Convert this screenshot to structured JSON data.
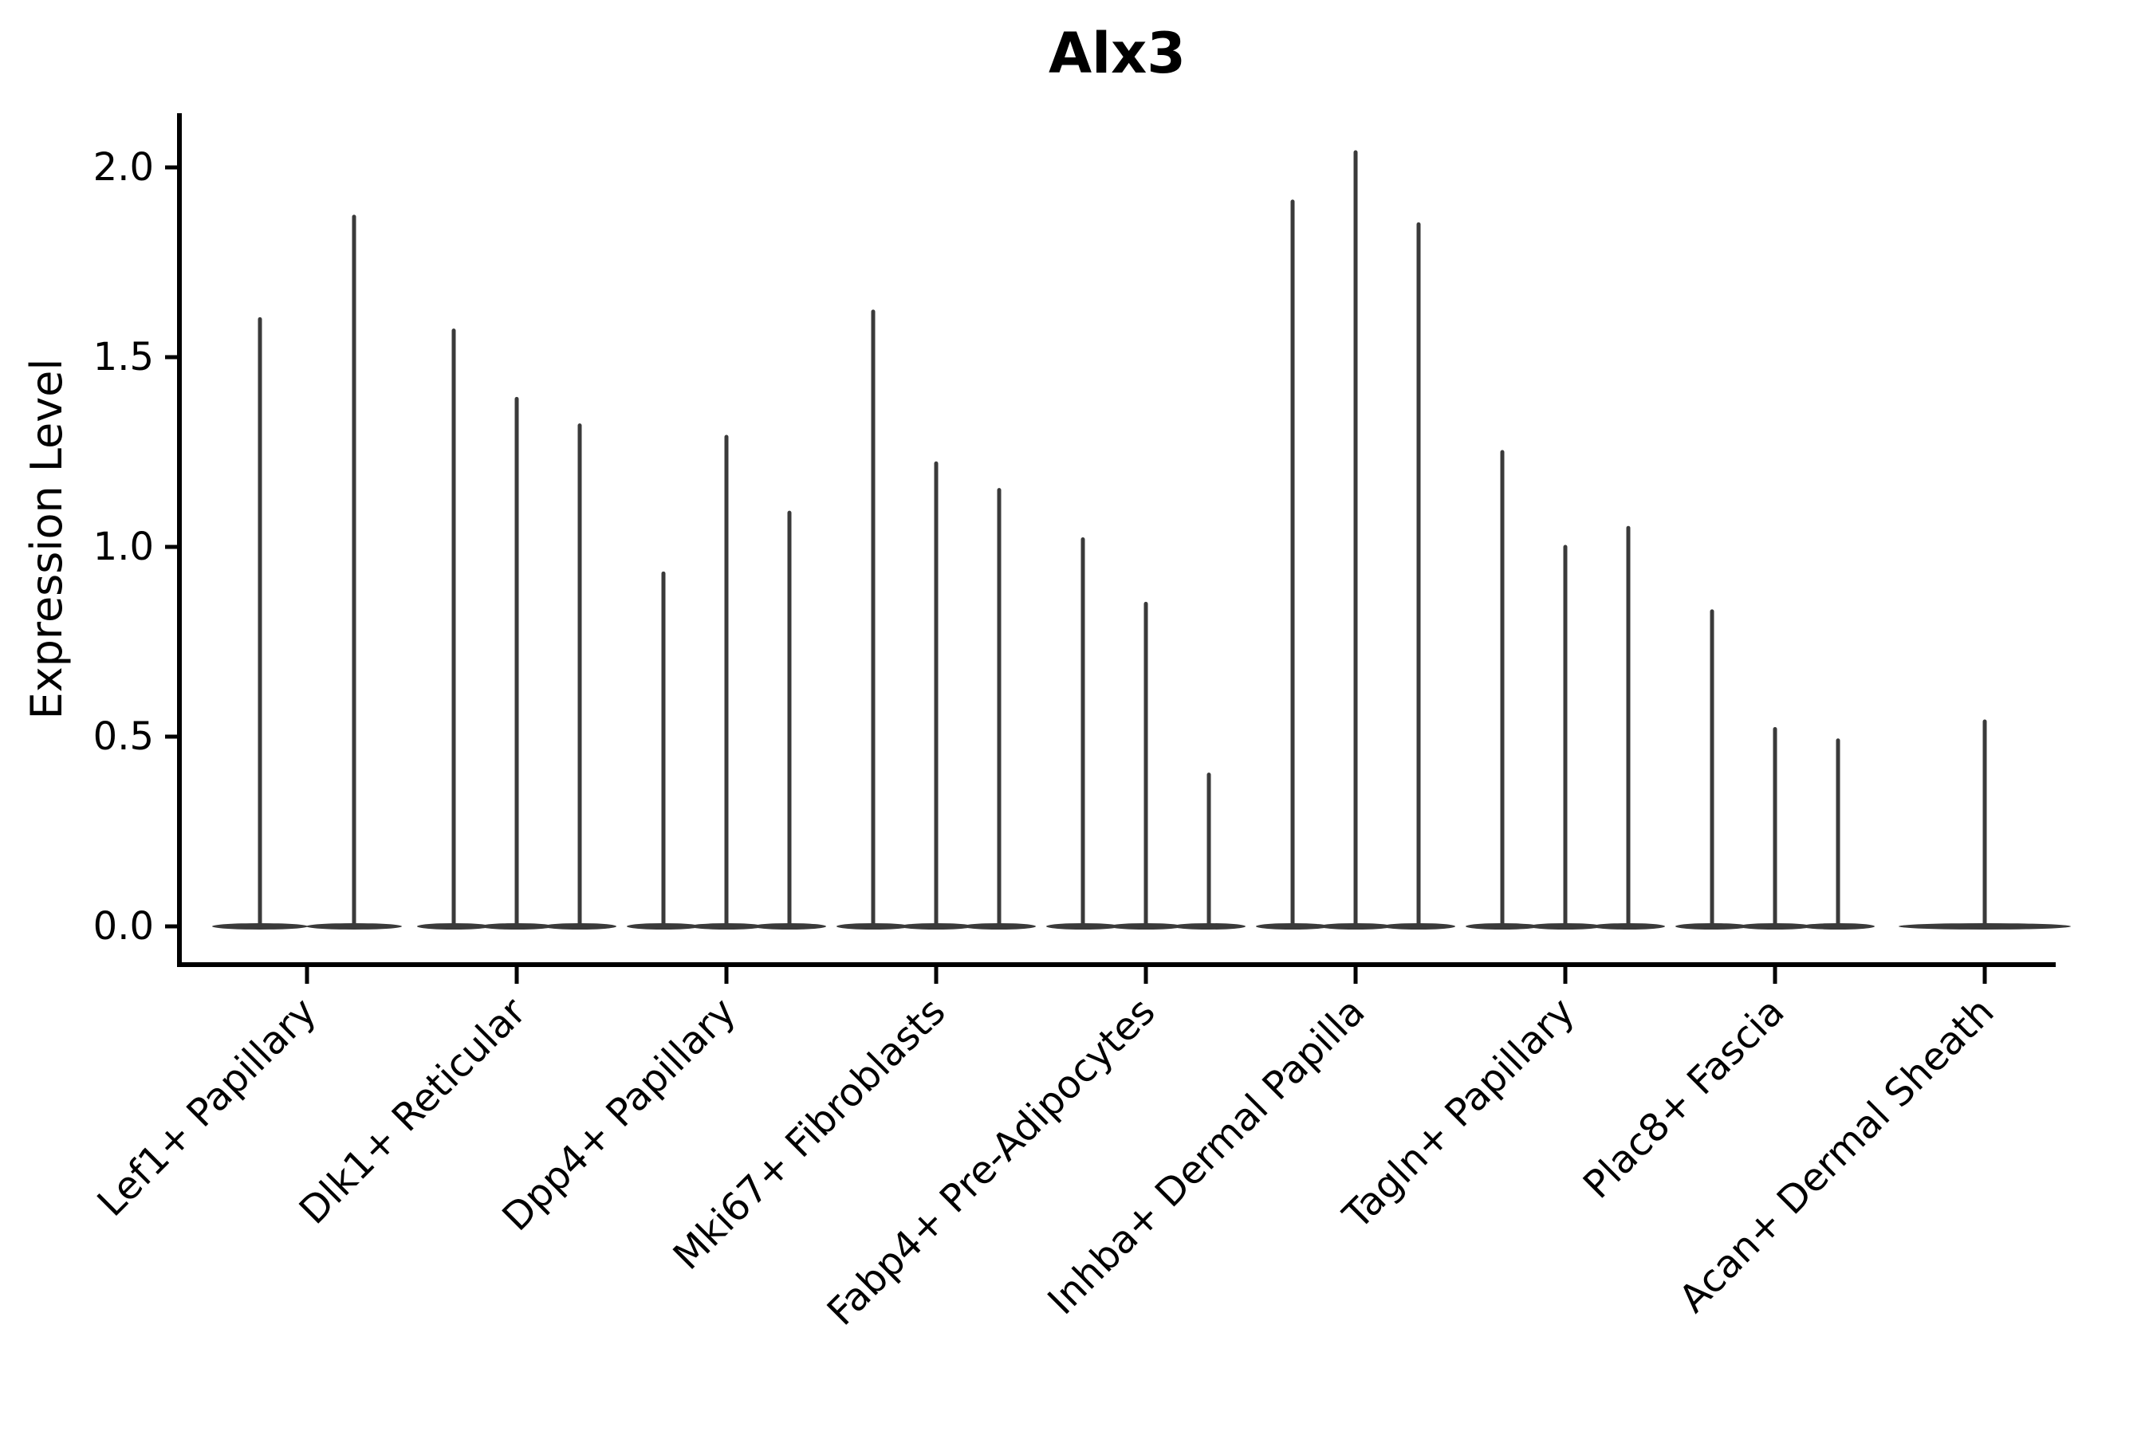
{
  "chart_data": {
    "type": "violin",
    "title": "Alx3",
    "xlabel": "",
    "ylabel": "Expression Level",
    "ylim": [
      -0.1,
      2.14
    ],
    "yticks": [
      0.0,
      0.5,
      1.0,
      1.5,
      2.0
    ],
    "ytick_labels": [
      "0.0",
      "0.5",
      "1.0",
      "1.5",
      "2.0"
    ],
    "grid": false,
    "legend": "none",
    "x_tick_rotation_deg": 45,
    "line_color": "#3a3a3a",
    "axis_color": "#000000",
    "background_color": "#ffffff",
    "categories": [
      "Lef1+ Papillary",
      "Dlk1+ Reticular",
      "Dpp4+ Papillary",
      "Mki67+ Fibroblasts",
      "Fabp4+ Pre-Adipocytes",
      "Inhba+ Dermal Papilla",
      "Tagln+ Papillary",
      "Plac8+ Fascia",
      "Acan+ Dermal Sheath"
    ],
    "series": [
      {
        "name": "Lef1+ Papillary",
        "violin_maxima": [
          1.6,
          1.87
        ]
      },
      {
        "name": "Dlk1+ Reticular",
        "violin_maxima": [
          1.57,
          1.39,
          1.32
        ]
      },
      {
        "name": "Dpp4+ Papillary",
        "violin_maxima": [
          0.93,
          1.29,
          1.09
        ]
      },
      {
        "name": "Mki67+ Fibroblasts",
        "violin_maxima": [
          1.62,
          1.22,
          1.15
        ]
      },
      {
        "name": "Fabp4+ Pre-Adipocytes",
        "violin_maxima": [
          1.02,
          0.85,
          0.4
        ]
      },
      {
        "name": "Inhba+ Dermal Papilla",
        "violin_maxima": [
          1.91,
          2.04,
          1.85
        ]
      },
      {
        "name": "Tagln+ Papillary",
        "violin_maxima": [
          1.25,
          1.0,
          1.05
        ]
      },
      {
        "name": "Plac8+ Fascia",
        "violin_maxima": [
          0.83,
          0.52,
          0.49
        ]
      },
      {
        "name": "Acan+ Dermal Sheath",
        "violin_maxima": [
          0.54
        ]
      }
    ],
    "violin_baseline_value": 0.0,
    "description": "Each category shows 1-3 very thin violins: a flat body at expression 0 and a hairline spike up to the listed maximum expression level."
  }
}
